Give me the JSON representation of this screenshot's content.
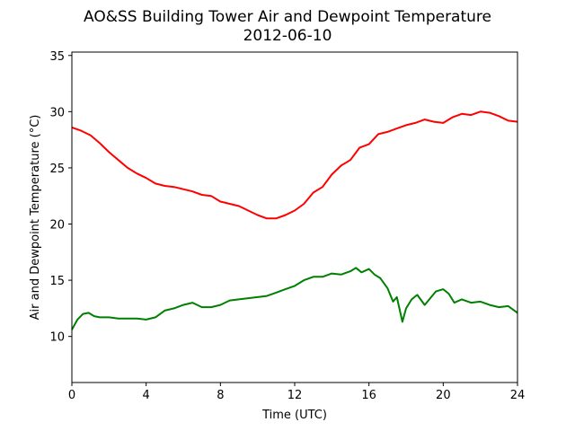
{
  "chart_data": {
    "type": "line",
    "title": "AO&SS Building Tower Air and Dewpoint Temperature",
    "subtitle": "2012-06-10",
    "xlabel": "Time (UTC)",
    "ylabel": "Air and Dewpoint Temperature (°C)",
    "xlim": [
      0,
      24
    ],
    "ylim": [
      5.9,
      35.3
    ],
    "x_ticks": [
      0,
      4,
      8,
      12,
      16,
      20,
      24
    ],
    "y_ticks": [
      10,
      15,
      20,
      25,
      30,
      35
    ],
    "grid": false,
    "legend": "none",
    "series": [
      {
        "color": "#ff0000",
        "x": [
          0,
          0.5,
          1,
          1.5,
          2,
          2.5,
          3,
          3.5,
          4,
          4.5,
          5,
          5.5,
          6,
          6.5,
          7,
          7.5,
          8,
          8.5,
          9,
          9.5,
          10,
          10.5,
          11,
          11.5,
          12,
          12.5,
          13,
          13.5,
          14,
          14.5,
          15,
          15.5,
          16,
          16.5,
          17,
          17.5,
          18,
          18.5,
          19,
          19.5,
          20,
          20.5,
          21,
          21.5,
          22,
          22.5,
          23,
          23.5,
          24
        ],
        "y": [
          28.6,
          28.3,
          27.9,
          27.2,
          26.4,
          25.7,
          25.0,
          24.5,
          24.1,
          23.6,
          23.4,
          23.3,
          23.1,
          22.9,
          22.6,
          22.5,
          22.0,
          21.8,
          21.6,
          21.2,
          20.8,
          20.5,
          20.5,
          20.8,
          21.2,
          21.8,
          22.8,
          23.3,
          24.4,
          25.2,
          25.7,
          26.8,
          27.1,
          28.0,
          28.2,
          28.5,
          28.8,
          29.0,
          29.3,
          29.1,
          29.0,
          29.5,
          29.8,
          29.7,
          30.0,
          29.9,
          29.6,
          29.2,
          29.1
        ]
      },
      {
        "color": "#008000",
        "x": [
          0,
          0.3,
          0.6,
          0.9,
          1.2,
          1.5,
          2,
          2.5,
          3,
          3.5,
          4,
          4.5,
          5,
          5.5,
          6,
          6.5,
          7,
          7.5,
          8,
          8.5,
          9,
          9.5,
          10,
          10.5,
          11,
          11.5,
          12,
          12.5,
          13,
          13.5,
          14,
          14.5,
          15,
          15.3,
          15.6,
          16,
          16.3,
          16.6,
          17,
          17.3,
          17.5,
          17.8,
          18,
          18.3,
          18.6,
          19,
          19.3,
          19.6,
          20,
          20.3,
          20.6,
          21,
          21.5,
          22,
          22.5,
          23,
          23.5,
          24
        ],
        "y": [
          10.6,
          11.5,
          12.0,
          12.1,
          11.8,
          11.7,
          11.7,
          11.6,
          11.6,
          11.6,
          11.5,
          11.7,
          12.3,
          12.5,
          12.8,
          13.0,
          12.6,
          12.6,
          12.8,
          13.2,
          13.3,
          13.4,
          13.5,
          13.6,
          13.9,
          14.2,
          14.5,
          15.0,
          15.3,
          15.3,
          15.6,
          15.5,
          15.8,
          16.1,
          15.7,
          16.0,
          15.5,
          15.2,
          14.3,
          13.1,
          13.5,
          11.3,
          12.5,
          13.3,
          13.7,
          12.8,
          13.4,
          14.0,
          14.2,
          13.8,
          13.0,
          13.3,
          13.0,
          13.1,
          12.8,
          12.6,
          12.7,
          12.1
        ]
      }
    ]
  }
}
